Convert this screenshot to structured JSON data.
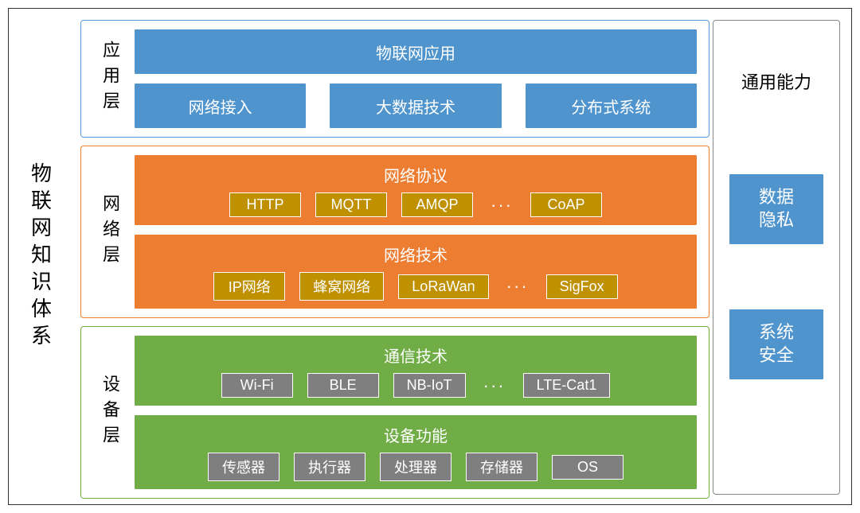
{
  "colors": {
    "blue_fill": "#4f94cd",
    "blue_border": "#5b9bd5",
    "orange_fill": "#ed7d31",
    "orange_border": "#ed7d31",
    "green_fill": "#70ad47",
    "green_border": "#70ad47",
    "gold_chip": "#bf9000",
    "grey_chip": "#7f7f7f",
    "right_border": "#888888",
    "outer_border": "#333333"
  },
  "main_title": "物联网知识体系",
  "layers": {
    "app": {
      "label": "应用层",
      "top_block": "物联网应用",
      "row": [
        "网络接入",
        "大数据技术",
        "分布式系统"
      ]
    },
    "net": {
      "label": "网络层",
      "groups": [
        {
          "title": "网络协议",
          "chips": [
            "HTTP",
            "MQTT",
            "AMQP"
          ],
          "tail": "CoAP",
          "ellipsis": "···"
        },
        {
          "title": "网络技术",
          "chips": [
            "IP网络",
            "蜂窝网络",
            "LoRaWan"
          ],
          "tail": "SigFox",
          "ellipsis": "···"
        }
      ]
    },
    "dev": {
      "label": "设备层",
      "groups": [
        {
          "title": "通信技术",
          "chips": [
            "Wi-Fi",
            "BLE",
            "NB-IoT"
          ],
          "tail": "LTE-Cat1",
          "ellipsis": "···"
        },
        {
          "title": "设备功能",
          "chips": [
            "传感器",
            "执行器",
            "处理器",
            "存储器",
            "OS"
          ],
          "tail": null,
          "ellipsis": null
        }
      ]
    }
  },
  "right": {
    "title": "通用能力",
    "boxes": [
      "数据\n隐私",
      "系统\n安全"
    ]
  }
}
